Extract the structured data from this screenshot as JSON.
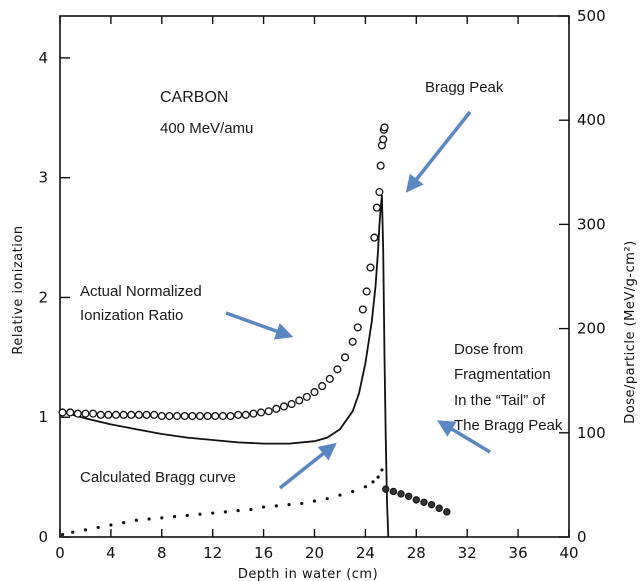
{
  "chart_data": {
    "type": "scatter",
    "title": "CARBON",
    "subtitle": "400 MeV/amu",
    "xlabel": "Depth in water (cm)",
    "ylabel": "Relative ionization",
    "y2label": "Dose/particle (MeV/g-cm²)",
    "xlim": [
      0,
      40
    ],
    "ylim": [
      0,
      4.35
    ],
    "y2lim": [
      0,
      500
    ],
    "x_ticks": [
      0,
      4,
      8,
      12,
      16,
      20,
      24,
      28,
      32,
      36,
      40
    ],
    "y_ticks": [
      0,
      1,
      2,
      3,
      4
    ],
    "y2_ticks": [
      0,
      100,
      200,
      300,
      400,
      500
    ],
    "grid": false,
    "series": [
      {
        "name": "Actual Normalized Ionization Ratio",
        "style": "open-circles",
        "x": [
          0.2,
          0.8,
          1.4,
          2.0,
          2.6,
          3.2,
          3.8,
          4.4,
          5.0,
          5.6,
          6.2,
          6.8,
          7.4,
          8.0,
          8.6,
          9.2,
          9.8,
          10.4,
          11.0,
          11.6,
          12.2,
          12.8,
          13.4,
          14.0,
          14.6,
          15.2,
          15.8,
          16.4,
          17.0,
          17.6,
          18.2,
          18.8,
          19.4,
          20.0,
          20.6,
          21.2,
          21.8,
          22.4,
          23.0,
          23.4,
          23.8,
          24.1,
          24.4,
          24.7,
          24.9,
          25.1,
          25.2,
          25.3,
          25.4,
          25.45,
          25.5
        ],
        "y": [
          1.04,
          1.04,
          1.03,
          1.03,
          1.03,
          1.02,
          1.02,
          1.02,
          1.02,
          1.02,
          1.02,
          1.02,
          1.02,
          1.01,
          1.01,
          1.01,
          1.01,
          1.01,
          1.01,
          1.01,
          1.01,
          1.01,
          1.01,
          1.02,
          1.02,
          1.03,
          1.04,
          1.05,
          1.07,
          1.09,
          1.11,
          1.14,
          1.17,
          1.21,
          1.26,
          1.32,
          1.4,
          1.5,
          1.63,
          1.75,
          1.9,
          2.05,
          2.25,
          2.5,
          2.75,
          2.88,
          3.1,
          3.27,
          3.32,
          3.4,
          3.42
        ]
      },
      {
        "name": "Calculated Bragg curve",
        "style": "solid-line",
        "x": [
          0,
          2,
          4,
          6,
          8,
          10,
          12,
          14,
          16,
          18,
          20,
          21,
          22,
          23,
          23.5,
          24,
          24.5,
          24.8,
          25.0,
          25.1,
          25.2,
          25.3,
          25.4,
          25.5,
          25.6,
          25.7,
          25.8
        ],
        "y": [
          1.05,
          0.99,
          0.94,
          0.9,
          0.86,
          0.83,
          0.81,
          0.79,
          0.78,
          0.78,
          0.8,
          0.83,
          0.9,
          1.05,
          1.2,
          1.45,
          1.8,
          2.1,
          2.4,
          2.6,
          2.75,
          2.85,
          2.4,
          1.5,
          0.8,
          0.3,
          0.0
        ]
      },
      {
        "name": "Dose from Fragmentation In the “Tail” of The Bragg Peak",
        "style": "dots-and-filled-circles",
        "x": [
          0.2,
          1,
          2,
          3,
          4,
          5,
          6,
          7,
          8,
          9,
          10,
          11,
          12,
          13,
          14,
          15,
          16,
          17,
          18,
          19,
          20,
          21,
          22,
          23,
          24,
          24.6,
          25.0,
          25.3,
          25.6,
          26.2,
          26.8,
          27.4,
          28.0,
          28.6,
          29.2,
          29.8,
          30.4
        ],
        "y": [
          0.02,
          0.04,
          0.06,
          0.08,
          0.1,
          0.12,
          0.14,
          0.15,
          0.16,
          0.17,
          0.18,
          0.19,
          0.2,
          0.21,
          0.22,
          0.23,
          0.25,
          0.26,
          0.27,
          0.28,
          0.3,
          0.32,
          0.35,
          0.38,
          0.42,
          0.46,
          0.5,
          0.56,
          0.4,
          0.38,
          0.36,
          0.34,
          0.31,
          0.29,
          0.27,
          0.24,
          0.21
        ]
      }
    ],
    "annotations": {
      "bragg_peak": "Bragg Peak",
      "actual_line1": "Actual Normalized",
      "actual_line2": "Ionization Ratio",
      "frag_line1": "Dose from",
      "frag_line2": "Fragmentation",
      "frag_line3": "In the “Tail” of",
      "frag_line4": "The Bragg Peak",
      "calc": "Calculated Bragg curve"
    },
    "colors": {
      "arrow": "#5b86c4",
      "ink": "#111111"
    }
  }
}
